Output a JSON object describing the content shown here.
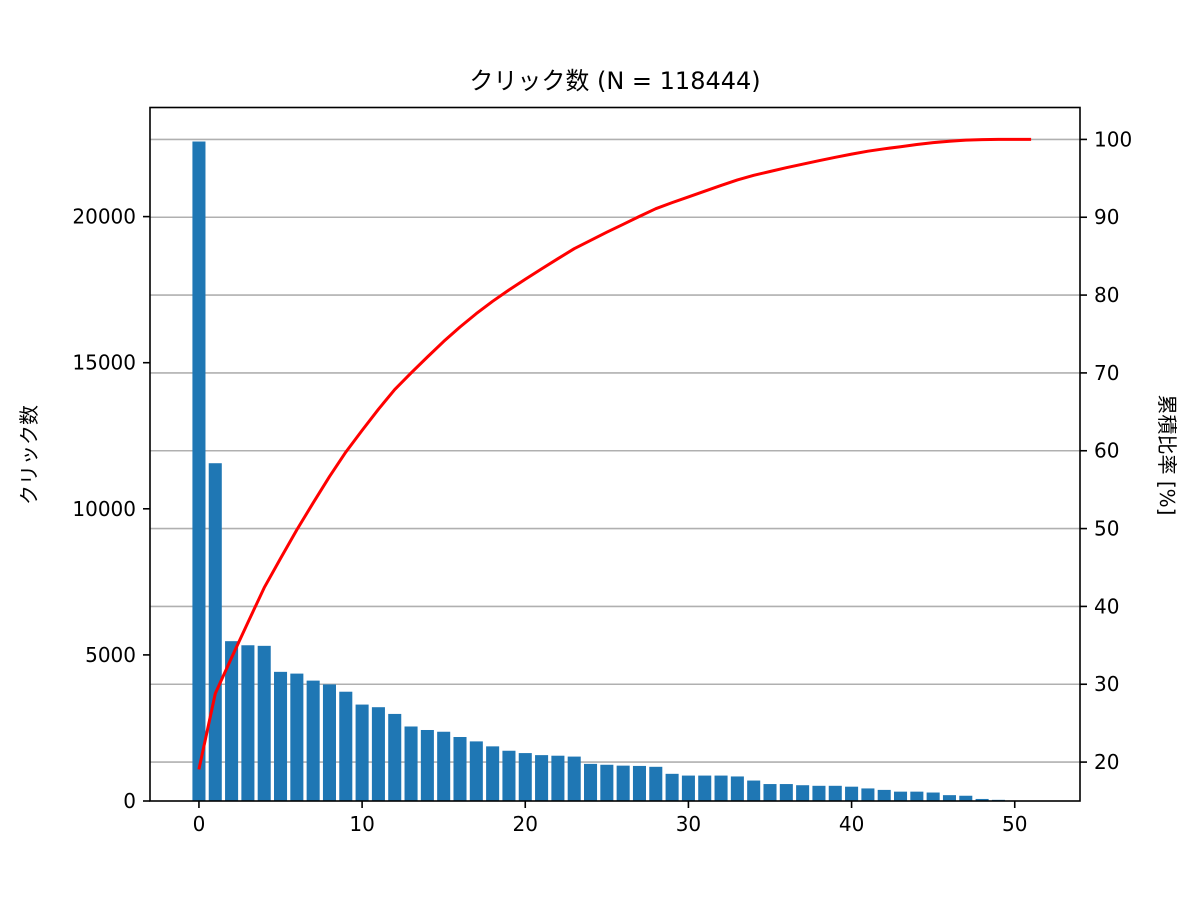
{
  "chart_data": {
    "type": "bar",
    "title": "クリック数 (N = 118444)",
    "xlabel": "",
    "ylabel": "クリック数",
    "ylabel_right": "累積比率 [%]",
    "xlim": [
      -3.0,
      54.0
    ],
    "ylim": [
      0,
      23734
    ],
    "ylim_right": [
      15.0,
      104.1
    ],
    "x_ticks": [
      0,
      10,
      20,
      30,
      40,
      50
    ],
    "y_ticks": [
      0,
      5000,
      10000,
      15000,
      20000
    ],
    "y_ticks_right": [
      20,
      30,
      40,
      50,
      60,
      70,
      80,
      90,
      100
    ],
    "grid": {
      "on": true,
      "axis": "y",
      "follows": "right"
    },
    "legend": null,
    "colors": {
      "bar": "#1f77b4",
      "line": "#ff0000",
      "grid": "#b0b0b0",
      "frame": "#000000"
    },
    "x": [
      0,
      1,
      2,
      3,
      4,
      5,
      6,
      7,
      8,
      9,
      10,
      11,
      12,
      13,
      14,
      15,
      16,
      17,
      18,
      19,
      20,
      21,
      22,
      23,
      24,
      25,
      26,
      27,
      28,
      29,
      30,
      31,
      32,
      33,
      34,
      35,
      36,
      37,
      38,
      39,
      40,
      41,
      42,
      43,
      44,
      45,
      46,
      47,
      48,
      49,
      50,
      51
    ],
    "series": [
      {
        "name": "クリック数",
        "type": "bar",
        "axis": "left",
        "values": [
          22570,
          11560,
          5470,
          5330,
          5310,
          4420,
          4360,
          4120,
          3990,
          3740,
          3300,
          3210,
          2980,
          2550,
          2430,
          2370,
          2190,
          2040,
          1870,
          1720,
          1640,
          1570,
          1550,
          1520,
          1270,
          1240,
          1210,
          1200,
          1170,
          930,
          870,
          870,
          870,
          840,
          700,
          580,
          580,
          540,
          520,
          520,
          490,
          430,
          380,
          320,
          320,
          290,
          200,
          180,
          70,
          40,
          4,
          0
        ]
      },
      {
        "name": "累積比率 [%]",
        "type": "line",
        "axis": "right",
        "values": [
          19.06,
          28.81,
          33.43,
          37.93,
          42.41,
          46.15,
          49.83,
          53.31,
          56.68,
          59.83,
          62.62,
          65.33,
          67.85,
          70.0,
          72.05,
          74.05,
          75.9,
          77.62,
          79.2,
          80.65,
          82.04,
          83.36,
          84.67,
          85.96,
          87.03,
          88.08,
          89.1,
          90.11,
          91.1,
          91.88,
          92.62,
          93.35,
          94.09,
          94.8,
          95.39,
          95.88,
          96.37,
          96.82,
          97.26,
          97.7,
          98.11,
          98.48,
          98.8,
          99.07,
          99.34,
          99.59,
          99.76,
          99.91,
          99.97,
          100.0,
          100.0,
          100.0
        ]
      }
    ]
  }
}
